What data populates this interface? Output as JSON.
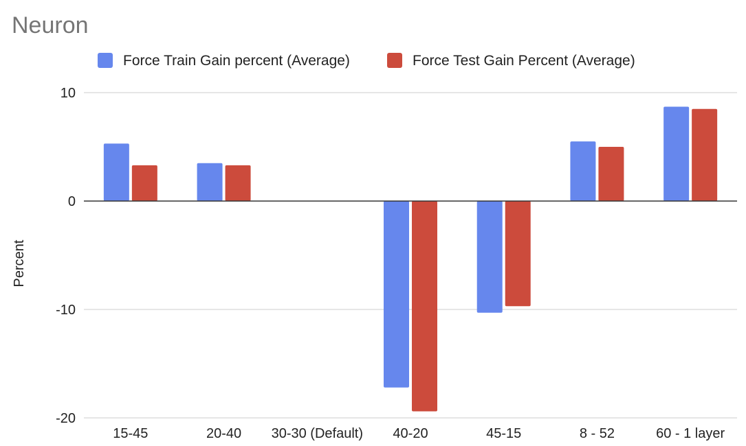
{
  "chart_data": {
    "type": "bar",
    "title": "Neuron",
    "xlabel": "",
    "ylabel": "Percent",
    "categories": [
      "15-45",
      "20-40",
      "30-30 (Default)",
      "40-20",
      "45-15",
      "8 - 52",
      "60 - 1 layer"
    ],
    "series": [
      {
        "name": "Force Train Gain percent (Average)",
        "color": "#6687ed",
        "values": [
          5.3,
          3.5,
          0,
          -17.2,
          -10.3,
          5.5,
          8.7
        ]
      },
      {
        "name": "Force Test Gain Percent (Average)",
        "color": "#cc4b3c",
        "values": [
          3.3,
          3.3,
          0,
          -19.4,
          -9.7,
          5.0,
          8.5
        ]
      }
    ],
    "ylim": [
      -20,
      10
    ],
    "yticks": [
      {
        "value": 10,
        "label": "10"
      },
      {
        "value": 0,
        "label": "0"
      },
      {
        "value": -10,
        "label": "-10"
      },
      {
        "value": -20,
        "label": "-20"
      }
    ],
    "grid": true,
    "legend_position": "top"
  }
}
